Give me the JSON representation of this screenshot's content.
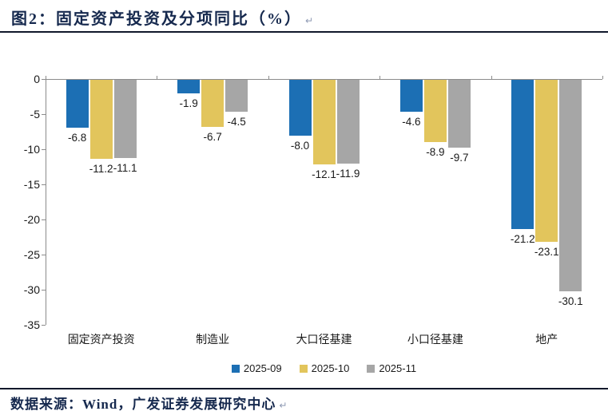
{
  "header": {
    "title": "图2：固定资产投资及分项同比（%）",
    "pilcrow": "↵"
  },
  "chart_data": {
    "type": "bar",
    "title": "固定资产投资及分项同比（%）",
    "categories": [
      "固定资产投资",
      "制造业",
      "大口径基建",
      "小口径基建",
      "地产"
    ],
    "series": [
      {
        "name": "2025-09",
        "color": "#1C6FB4",
        "values": [
          -6.8,
          -1.9,
          -8.0,
          -4.6,
          -21.2
        ]
      },
      {
        "name": "2025-10",
        "color": "#E2C55C",
        "values": [
          -11.2,
          -6.7,
          -12.1,
          -8.9,
          -23.1
        ]
      },
      {
        "name": "2025-11",
        "color": "#A6A6A6",
        "values": [
          -11.1,
          -4.5,
          -11.9,
          -9.7,
          -30.1
        ]
      }
    ],
    "ylim": [
      -35,
      0
    ],
    "ytick_step": 5,
    "yticks": [
      "0",
      "-5",
      "-10",
      "-15",
      "-20",
      "-25",
      "-30",
      "-35"
    ],
    "grid": false,
    "data_labels": true,
    "legend_position": "bottom",
    "axis_color": "#8C8C8C",
    "label_color": "#1A1A1A"
  },
  "footer": {
    "source_text": "数据来源：Wind，广发证券发展研究中心",
    "pilcrow": "↵"
  }
}
